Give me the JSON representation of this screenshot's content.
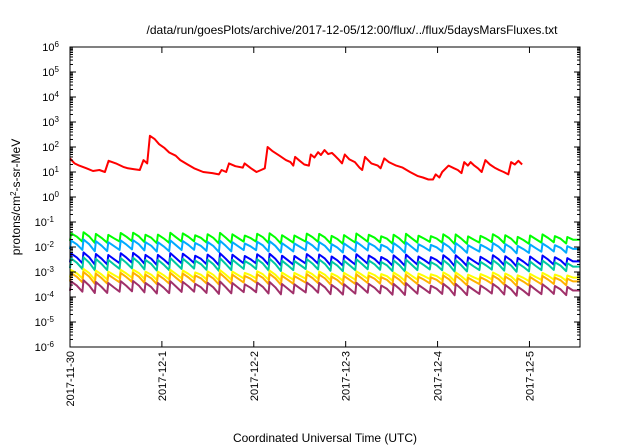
{
  "chart_data": {
    "type": "line",
    "title": "/data/run/goesPlots/archive/2017-12-05/12:00/flux/../flux/5daysMarsFluxes.txt",
    "xlabel": "Coordinated Universal Time (UTC)",
    "ylabel_parts": [
      "protons/cm",
      "2",
      "-s-sr-MeV"
    ],
    "x_ticks": [
      "2017-11-30",
      "2017-12-1",
      "2017-12-2",
      "2017-12-3",
      "2017-12-4",
      "2017-12-5"
    ],
    "x_range_days": [
      0,
      5.55
    ],
    "y_scale": "log",
    "y_ticks": [
      {
        "base": "10",
        "exp": "6"
      },
      {
        "base": "10",
        "exp": "5"
      },
      {
        "base": "10",
        "exp": "4"
      },
      {
        "base": "10",
        "exp": "3"
      },
      {
        "base": "10",
        "exp": "2"
      },
      {
        "base": "10",
        "exp": "1"
      },
      {
        "base": "10",
        "exp": "0"
      },
      {
        "base": "10",
        "exp": "-1"
      },
      {
        "base": "10",
        "exp": "-2"
      },
      {
        "base": "10",
        "exp": "-3"
      },
      {
        "base": "10",
        "exp": "-4"
      },
      {
        "base": "10",
        "exp": "-5"
      },
      {
        "base": "10",
        "exp": "-6"
      }
    ],
    "y_range_log10": [
      -6,
      6
    ],
    "grid": false,
    "legend": "none",
    "series": [
      {
        "color": "#ff0000",
        "sawtooth": false,
        "points": [
          [
            0.0,
            35
          ],
          [
            0.05,
            22
          ],
          [
            0.1,
            18
          ],
          [
            0.18,
            14
          ],
          [
            0.25,
            11
          ],
          [
            0.32,
            12
          ],
          [
            0.38,
            10
          ],
          [
            0.42,
            28
          ],
          [
            0.5,
            22
          ],
          [
            0.58,
            16
          ],
          [
            0.63,
            14
          ],
          [
            0.7,
            13
          ],
          [
            0.76,
            12
          ],
          [
            0.8,
            30
          ],
          [
            0.84,
            22
          ],
          [
            0.87,
            280
          ],
          [
            0.92,
            210
          ],
          [
            0.97,
            130
          ],
          [
            1.03,
            90
          ],
          [
            1.08,
            60
          ],
          [
            1.15,
            45
          ],
          [
            1.2,
            30
          ],
          [
            1.28,
            20
          ],
          [
            1.35,
            14
          ],
          [
            1.45,
            10
          ],
          [
            1.55,
            9
          ],
          [
            1.62,
            8
          ],
          [
            1.65,
            12
          ],
          [
            1.7,
            10
          ],
          [
            1.73,
            22
          ],
          [
            1.8,
            17
          ],
          [
            1.88,
            15
          ],
          [
            1.9,
            22
          ],
          [
            1.97,
            14
          ],
          [
            2.03,
            10
          ],
          [
            2.08,
            12
          ],
          [
            2.12,
            14
          ],
          [
            2.15,
            100
          ],
          [
            2.2,
            70
          ],
          [
            2.28,
            45
          ],
          [
            2.35,
            30
          ],
          [
            2.4,
            25
          ],
          [
            2.43,
            18
          ],
          [
            2.45,
            40
          ],
          [
            2.5,
            28
          ],
          [
            2.55,
            20
          ],
          [
            2.6,
            18
          ],
          [
            2.62,
            50
          ],
          [
            2.66,
            38
          ],
          [
            2.7,
            62
          ],
          [
            2.73,
            48
          ],
          [
            2.77,
            75
          ],
          [
            2.81,
            52
          ],
          [
            2.85,
            58
          ],
          [
            2.89,
            42
          ],
          [
            2.93,
            30
          ],
          [
            2.96,
            22
          ],
          [
            2.99,
            50
          ],
          [
            3.04,
            32
          ],
          [
            3.1,
            25
          ],
          [
            3.15,
            15
          ],
          [
            3.18,
            12
          ],
          [
            3.21,
            40
          ],
          [
            3.28,
            22
          ],
          [
            3.35,
            18
          ],
          [
            3.38,
            14
          ],
          [
            3.42,
            35
          ],
          [
            3.47,
            25
          ],
          [
            3.55,
            18
          ],
          [
            3.62,
            15
          ],
          [
            3.7,
            10
          ],
          [
            3.78,
            7
          ],
          [
            3.84,
            6
          ],
          [
            3.9,
            5
          ],
          [
            3.95,
            5
          ],
          [
            3.98,
            8
          ],
          [
            4.02,
            6
          ],
          [
            4.05,
            10
          ],
          [
            4.12,
            18
          ],
          [
            4.18,
            14
          ],
          [
            4.22,
            12
          ],
          [
            4.26,
            9
          ],
          [
            4.29,
            25
          ],
          [
            4.33,
            18
          ],
          [
            4.36,
            25
          ],
          [
            4.4,
            18
          ],
          [
            4.44,
            14
          ],
          [
            4.48,
            10
          ],
          [
            4.52,
            30
          ],
          [
            4.57,
            20
          ],
          [
            4.62,
            15
          ],
          [
            4.67,
            12
          ],
          [
            4.72,
            10
          ],
          [
            4.77,
            8
          ],
          [
            4.8,
            25
          ],
          [
            4.84,
            20
          ],
          [
            4.88,
            28
          ],
          [
            4.92,
            20
          ]
        ]
      },
      {
        "color": "#00ff00",
        "sawtooth": true,
        "period": 0.135,
        "start_high": 0.035,
        "start_low": 0.016,
        "end_high": 0.028,
        "end_low": 0.014
      },
      {
        "color": "#00aaff",
        "sawtooth": true,
        "period": 0.135,
        "start_high": 0.018,
        "start_low": 0.0075,
        "end_high": 0.012,
        "end_low": 0.006
      },
      {
        "color": "#0000ff",
        "sawtooth": true,
        "period": 0.135,
        "start_high": 0.0055,
        "start_low": 0.0022,
        "end_high": 0.004,
        "end_low": 0.0018
      },
      {
        "color": "#00c8a0",
        "sawtooth": true,
        "period": 0.135,
        "start_high": 0.0035,
        "start_low": 0.0013,
        "end_high": 0.0025,
        "end_low": 0.0011
      },
      {
        "color": "#ffff00",
        "sawtooth": true,
        "period": 0.135,
        "start_high": 0.0012,
        "start_low": 0.00055,
        "end_high": 0.0008,
        "end_low": 0.00045
      },
      {
        "color": "#ffb000",
        "sawtooth": true,
        "period": 0.135,
        "start_high": 0.0009,
        "start_low": 0.00038,
        "end_high": 0.0006,
        "end_low": 0.0003
      },
      {
        "color": "#a0306a",
        "sawtooth": true,
        "period": 0.135,
        "start_high": 0.00042,
        "start_low": 0.00016,
        "end_high": 0.00028,
        "end_low": 0.00012
      }
    ]
  }
}
